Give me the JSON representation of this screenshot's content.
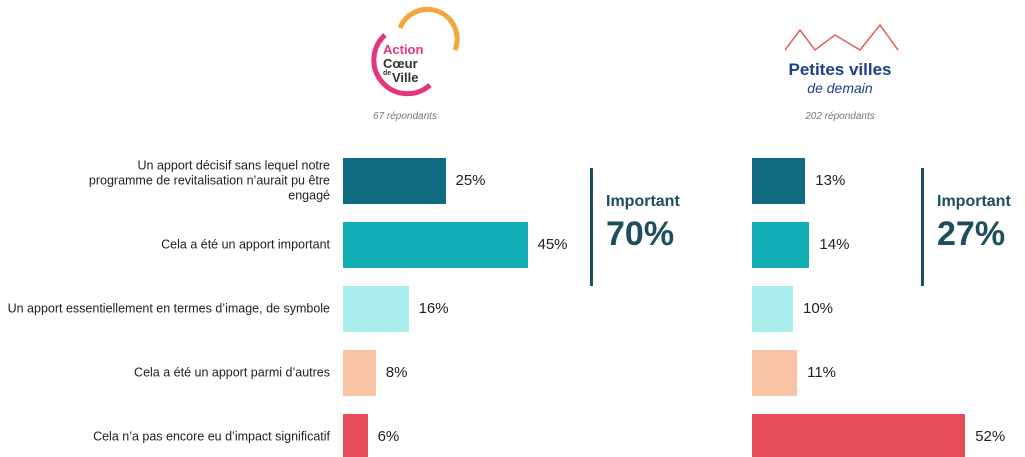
{
  "chart_data": {
    "type": "bar",
    "categories": [
      "Un apport décisif sans lequel notre programme de revitalisation n’aurait pu être engagé",
      "Cela a été un apport important",
      "Un apport essentiellement en termes d’image, de symbole",
      "Cela a été un apport parmi d’autres",
      "Cela n’a pas encore eu d’impact significatif"
    ],
    "colors": [
      "#0f6b80",
      "#12aeb6",
      "#a9eded",
      "#f7c4a6",
      "#e54e58"
    ],
    "series": [
      {
        "logo": [
          "Action",
          "Cœur",
          "de",
          "Ville"
        ],
        "note": "67 répondants",
        "values": [
          25,
          45,
          16,
          8,
          6
        ],
        "value_labels": [
          "25%",
          "45%",
          "16%",
          "8%",
          "6%"
        ],
        "summary_label": "Important",
        "summary": "70%"
      },
      {
        "logo": [
          "Petites villes",
          "de demain"
        ],
        "note": "202 répondants",
        "values": [
          13,
          14,
          10,
          11,
          52
        ],
        "value_labels": [
          "13%",
          "14%",
          "10%",
          "11%",
          "52%"
        ],
        "summary_label": "Important",
        "summary": "27%"
      }
    ]
  }
}
